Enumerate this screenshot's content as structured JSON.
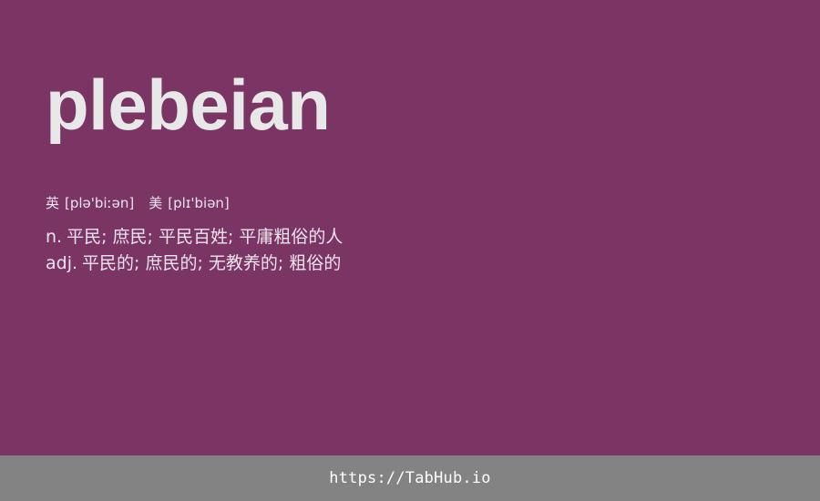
{
  "colors": {
    "background": "#7a3565",
    "text_primary": "#e8e8e8",
    "text_secondary": "#ece4ea",
    "footer_background": "#838383",
    "footer_text": "#ffffff"
  },
  "word": "plebeian",
  "phonetics": {
    "uk_label": "英",
    "uk_ipa": "[plə'biːən]",
    "us_label": "美",
    "us_ipa": "[plɪ'biən]"
  },
  "definitions": [
    {
      "pos": "n.",
      "meaning": "平民; 庶民; 平民百姓; 平庸粗俗的人"
    },
    {
      "pos": "adj.",
      "meaning": "平民的; 庶民的; 无教养的; 粗俗的"
    }
  ],
  "footer": {
    "link_text": "https://TabHub.io"
  }
}
